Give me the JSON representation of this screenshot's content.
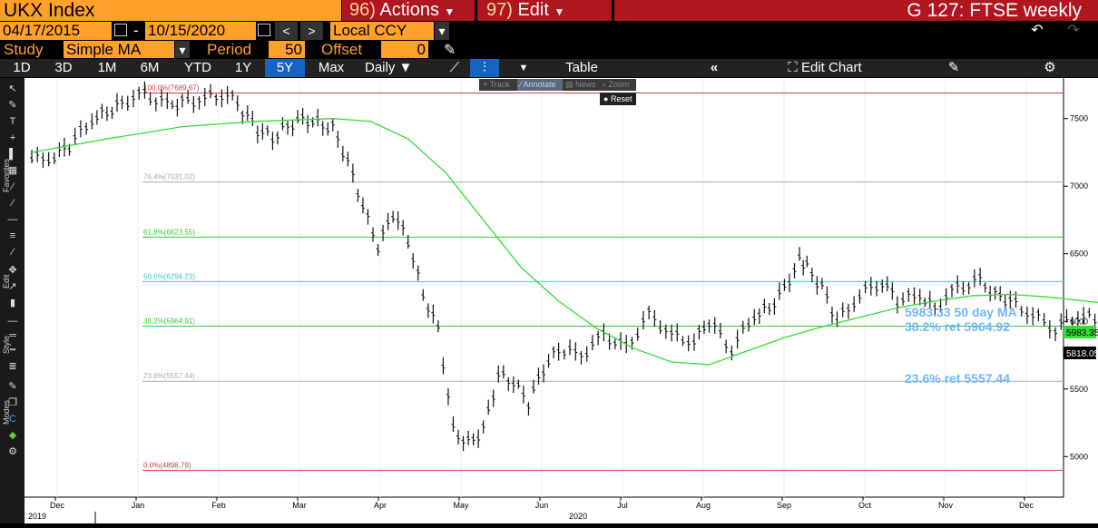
{
  "header": {
    "ticker": "UKX Index",
    "actions": {
      "num": "96)",
      "label": "Actions"
    },
    "edit": {
      "num": "97)",
      "label": "Edit"
    },
    "title": "G 127: FTSE weekly"
  },
  "dates": {
    "start": "04/17/2015",
    "end": "10/15/2020",
    "currency": "Local CCY",
    "dash": "-"
  },
  "study": {
    "label": "Study",
    "type": "Simple MA",
    "period_label": "Period",
    "period": "50",
    "offset_label": "Offset",
    "offset": "0"
  },
  "toolbar": {
    "ranges": [
      "1D",
      "3D",
      "1M",
      "6M",
      "YTD",
      "1Y",
      "5Y",
      "Max"
    ],
    "active_range": "5Y",
    "frequency": "Daily",
    "table": "Table",
    "edit_chart": "Edit Chart"
  },
  "overlay": {
    "track": "Track",
    "annotate": "Annotate",
    "news": "News",
    "zoom": "Zoom",
    "reset": "Reset"
  },
  "sidebar": {
    "favorites": "Favorites",
    "edit": "Edit",
    "style": "Style",
    "modes": "Modes"
  },
  "annotations": {
    "ma": "5983.33  50 day MA",
    "ret382": "38.2% ret 5964.92",
    "ret236": "23.6% ret 5557.44"
  },
  "price_tags": {
    "ma": "5983.35",
    "last": "5818.05"
  },
  "colors": {
    "accent_orange": "#ffa028",
    "bloomberg_red": "#b0161e",
    "ma_line": "#33dd33",
    "annotation_blue": "#6fb7ff"
  },
  "chart_data": {
    "type": "line",
    "y_axis": {
      "ticks": [
        5000,
        5500,
        6000,
        6500,
        7000,
        7500
      ],
      "range": [
        4700,
        7800
      ],
      "side": "right"
    },
    "x_axis": {
      "months": [
        "Dec",
        "Jan",
        "Feb",
        "Mar",
        "Apr",
        "May",
        "Jun",
        "Jul",
        "Aug",
        "Sep",
        "Oct",
        "Nov",
        "Dec"
      ],
      "years": [
        "2019",
        "2020"
      ]
    },
    "fib_levels": [
      {
        "label": "100.0%(7689.67)",
        "value": 7689.67,
        "color": "#d04040"
      },
      {
        "label": "76.4%(7031.02)",
        "value": 7031.02,
        "color": "#aaaaaa"
      },
      {
        "label": "61.8%(6623.55)",
        "value": 6623.55,
        "color": "#33cc33"
      },
      {
        "label": "50.0%(6294.23)",
        "value": 6294.23,
        "color": "#33cccc"
      },
      {
        "label": "38.2%(5964.91)",
        "value": 5964.91,
        "color": "#33cc33"
      },
      {
        "label": "23.6%(5557.44)",
        "value": 5557.44,
        "color": "#aaaaaa"
      },
      {
        "label": "0.0%(4898.79)",
        "value": 4898.79,
        "color": "#d04040"
      }
    ],
    "series": [
      {
        "name": "UKX",
        "style": "bars",
        "points": [
          [
            0,
            7200
          ],
          [
            0.3,
            7220
          ],
          [
            0.5,
            7300
          ],
          [
            0.8,
            7500
          ],
          [
            1,
            7550
          ],
          [
            1.2,
            7620
          ],
          [
            1.5,
            7680
          ],
          [
            1.8,
            7600
          ],
          [
            2,
            7620
          ],
          [
            2.3,
            7650
          ],
          [
            2.6,
            7690
          ],
          [
            2.8,
            7560
          ],
          [
            3,
            7420
          ],
          [
            3.2,
            7360
          ],
          [
            3.4,
            7450
          ],
          [
            3.6,
            7500
          ],
          [
            3.8,
            7470
          ],
          [
            4,
            7430
          ],
          [
            4.2,
            7180
          ],
          [
            4.4,
            6850
          ],
          [
            4.6,
            6550
          ],
          [
            4.8,
            6800
          ],
          [
            5,
            6600
          ],
          [
            5.2,
            6200
          ],
          [
            5.4,
            5950
          ],
          [
            5.6,
            5200
          ],
          [
            5.8,
            5100
          ],
          [
            6,
            5200
          ],
          [
            6.2,
            5600
          ],
          [
            6.4,
            5550
          ],
          [
            6.6,
            5400
          ],
          [
            6.8,
            5650
          ],
          [
            7,
            5800
          ],
          [
            7.3,
            5750
          ],
          [
            7.6,
            5900
          ],
          [
            7.9,
            5800
          ],
          [
            8.2,
            6050
          ],
          [
            8.5,
            5900
          ],
          [
            8.8,
            5850
          ],
          [
            9,
            6000
          ],
          [
            9.3,
            5800
          ],
          [
            9.6,
            6050
          ],
          [
            9.8,
            6100
          ],
          [
            10,
            6250
          ],
          [
            10.2,
            6450
          ],
          [
            10.3,
            6400
          ],
          [
            10.5,
            6250
          ],
          [
            10.7,
            6000
          ],
          [
            11,
            6200
          ],
          [
            11.3,
            6300
          ],
          [
            11.5,
            6150
          ],
          [
            11.8,
            6200
          ],
          [
            12,
            6100
          ],
          [
            12.3,
            6250
          ],
          [
            12.6,
            6300
          ],
          [
            12.8,
            6200
          ],
          [
            13,
            6150
          ],
          [
            13.3,
            6050
          ],
          [
            13.6,
            5950
          ],
          [
            13.9,
            6050
          ],
          [
            14.2,
            6000
          ],
          [
            14.5,
            6250
          ],
          [
            14.7,
            6100
          ],
          [
            15,
            6050
          ],
          [
            15.3,
            6100
          ],
          [
            15.6,
            5950
          ],
          [
            15.9,
            5900
          ],
          [
            16.2,
            5950
          ],
          [
            16.5,
            6050
          ],
          [
            16.8,
            5900
          ],
          [
            17,
            5850
          ],
          [
            17.3,
            5900
          ],
          [
            17.6,
            5900
          ],
          [
            17.9,
            5950
          ],
          [
            18.1,
            5950
          ],
          [
            18.3,
            5818
          ]
        ]
      },
      {
        "name": "50 day MA",
        "style": "line",
        "points": [
          [
            0,
            7250
          ],
          [
            1,
            7350
          ],
          [
            2,
            7440
          ],
          [
            3,
            7480
          ],
          [
            4,
            7500
          ],
          [
            4.5,
            7480
          ],
          [
            5,
            7350
          ],
          [
            5.5,
            7100
          ],
          [
            6,
            6750
          ],
          [
            6.5,
            6400
          ],
          [
            7,
            6150
          ],
          [
            7.5,
            5950
          ],
          [
            8,
            5800
          ],
          [
            8.5,
            5700
          ],
          [
            9,
            5680
          ],
          [
            9.5,
            5780
          ],
          [
            10,
            5880
          ],
          [
            10.5,
            5960
          ],
          [
            11,
            6030
          ],
          [
            11.5,
            6100
          ],
          [
            12,
            6150
          ],
          [
            12.5,
            6190
          ],
          [
            13,
            6200
          ],
          [
            13.5,
            6180
          ],
          [
            14,
            6150
          ],
          [
            14.5,
            6120
          ],
          [
            15,
            6090
          ],
          [
            15.5,
            6060
          ],
          [
            16,
            6040
          ],
          [
            16.5,
            6020
          ],
          [
            17,
            6005
          ],
          [
            17.5,
            5995
          ],
          [
            18,
            5990
          ],
          [
            18.3,
            5983.33
          ]
        ]
      }
    ]
  }
}
